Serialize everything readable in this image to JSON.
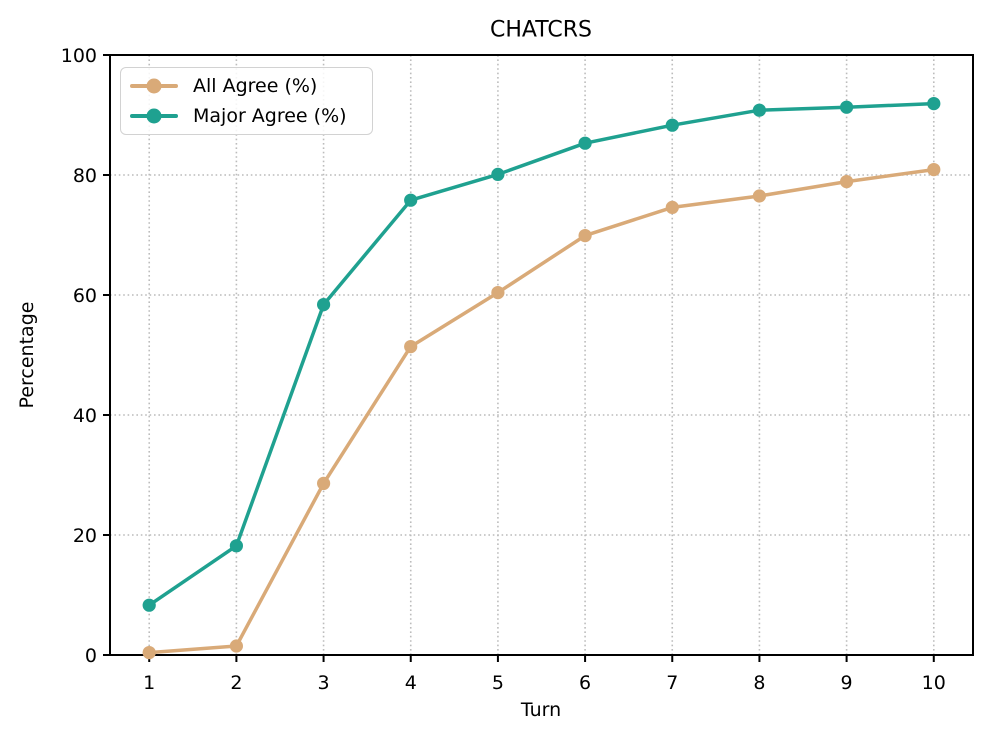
{
  "title": "CHATCRS",
  "axes": {
    "xlabel": "Turn",
    "ylabel": "Percentage"
  },
  "legend": {
    "items": [
      {
        "label": "All Agree (%)",
        "color": "#d9aa78"
      },
      {
        "label": "Major Agree (%)",
        "color": "#1fa190"
      }
    ]
  },
  "style": {
    "grid_color": "#bcbcbc",
    "spine_color": "#000000",
    "tick_color": "#000000",
    "background": "#ffffff"
  },
  "chart_data": {
    "type": "line",
    "title": "CHATCRS",
    "xlabel": "Turn",
    "ylabel": "Percentage",
    "x": [
      1,
      2,
      3,
      4,
      5,
      6,
      7,
      8,
      9,
      10
    ],
    "series": [
      {
        "name": "All Agree (%)",
        "color": "#d9aa78",
        "values": [
          0.4,
          1.5,
          28.6,
          51.4,
          60.4,
          69.9,
          74.6,
          76.5,
          78.9,
          80.9
        ]
      },
      {
        "name": "Major Agree (%)",
        "color": "#1fa190",
        "values": [
          8.3,
          18.2,
          58.4,
          75.8,
          80.1,
          85.3,
          88.3,
          90.8,
          91.3,
          91.9
        ]
      }
    ],
    "xticks": [
      1,
      2,
      3,
      4,
      5,
      6,
      7,
      8,
      9,
      10
    ],
    "yticks": [
      0,
      20,
      40,
      60,
      80,
      100
    ],
    "xlim": [
      0.55,
      10.45
    ],
    "ylim": [
      0,
      100
    ],
    "grid": true,
    "grid_style": "dotted",
    "legend_position": "upper left"
  }
}
